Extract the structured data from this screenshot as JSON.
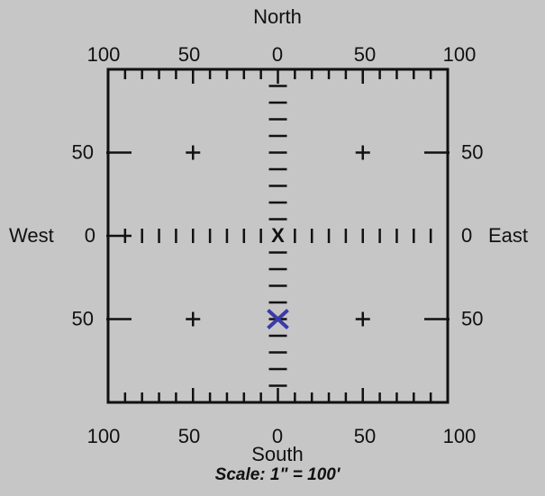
{
  "north": "North",
  "south": "South",
  "west": "West",
  "east": "East",
  "top_labels": [
    "100",
    "50",
    "0",
    "50",
    "100"
  ],
  "bottom_labels": [
    "100",
    "50",
    "0",
    "50",
    "100"
  ],
  "left_labels": [
    "50",
    "0",
    "50"
  ],
  "right_labels": [
    "50",
    "0",
    "50"
  ],
  "center_label": "X",
  "scale": "Scale: 1\" = 100'"
}
